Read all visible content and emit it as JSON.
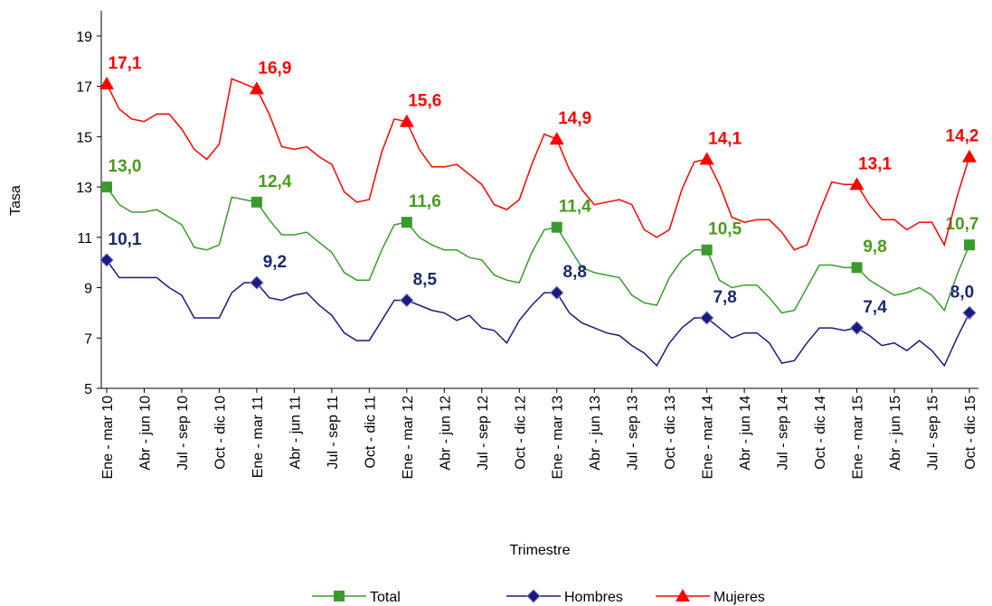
{
  "chart_data": {
    "type": "line",
    "x_label": "Trimestre",
    "y_label": "Tasa",
    "categories": [
      "Ene - mar 10",
      null,
      null,
      "Abr - jun 10",
      null,
      null,
      "Jul - sep 10",
      null,
      null,
      "Oct - dic 10",
      null,
      null,
      "Ene - mar 11",
      null,
      null,
      "Abr - jun 11",
      null,
      null,
      "Jul - sep 11",
      null,
      null,
      "Oct - dic 11",
      null,
      null,
      "Ene - mar 12",
      null,
      null,
      "Abr - jun 12",
      null,
      null,
      "Jul - sep 12",
      null,
      null,
      "Oct - dic 12",
      null,
      null,
      "Ene - mar 13",
      null,
      null,
      "Abr - jun 13",
      null,
      null,
      "Jul - sep 13",
      null,
      null,
      "Oct - dic 13",
      null,
      null,
      "Ene - mar 14",
      null,
      null,
      "Abr - jun 14",
      null,
      null,
      "Jul - sep 14",
      null,
      null,
      "Oct - dic 14",
      null,
      null,
      "Ene - mar 15",
      null,
      null,
      "Abr - jun 15",
      null,
      null,
      "Jul - sep 15",
      null,
      null,
      "Oct - dic 15"
    ],
    "series": [
      {
        "name": "Total",
        "color": "#3b9a2e",
        "label_color": "#4a9a1c",
        "marker": "square",
        "values": [
          13.0,
          12.3,
          12.0,
          12.0,
          12.1,
          11.8,
          11.5,
          10.6,
          10.5,
          10.7,
          12.6,
          12.5,
          12.4,
          11.7,
          11.1,
          11.1,
          11.2,
          10.8,
          10.4,
          9.6,
          9.3,
          9.3,
          10.5,
          11.5,
          11.6,
          11.0,
          10.7,
          10.5,
          10.5,
          10.2,
          10.1,
          9.5,
          9.3,
          9.2,
          10.4,
          11.3,
          11.4,
          10.6,
          9.8,
          9.6,
          9.5,
          9.4,
          8.7,
          8.4,
          8.3,
          9.4,
          10.1,
          10.5,
          10.5,
          9.3,
          9.0,
          9.1,
          9.1,
          8.6,
          8.0,
          8.1,
          9.0,
          9.9,
          9.9,
          9.8,
          9.8,
          9.3,
          9.0,
          8.7,
          8.8,
          9.0,
          8.7,
          8.1,
          9.5,
          10.7
        ],
        "value_labels": [
          "13,0",
          null,
          null,
          null,
          null,
          null,
          null,
          null,
          null,
          null,
          null,
          null,
          "12,4",
          null,
          null,
          null,
          null,
          null,
          null,
          null,
          null,
          null,
          null,
          null,
          "11,6",
          null,
          null,
          null,
          null,
          null,
          null,
          null,
          null,
          null,
          null,
          null,
          "11,4",
          null,
          null,
          null,
          null,
          null,
          null,
          null,
          null,
          null,
          null,
          null,
          "10,5",
          null,
          null,
          null,
          null,
          null,
          null,
          null,
          null,
          null,
          null,
          null,
          "9,8",
          null,
          null,
          null,
          null,
          null,
          null,
          null,
          null,
          "10,7"
        ]
      },
      {
        "name": "Hombres",
        "color": "#1a1a80",
        "label_color": "#1a2a6c",
        "marker": "diamond",
        "values": [
          10.1,
          9.4,
          9.4,
          9.4,
          9.4,
          9.0,
          8.7,
          7.8,
          7.8,
          7.8,
          8.8,
          9.2,
          9.2,
          8.6,
          8.5,
          8.7,
          8.8,
          8.3,
          7.9,
          7.2,
          6.9,
          6.9,
          7.7,
          8.5,
          8.5,
          8.3,
          8.1,
          8.0,
          7.7,
          7.9,
          7.4,
          7.3,
          6.8,
          7.7,
          8.3,
          8.8,
          8.8,
          8.0,
          7.6,
          7.4,
          7.2,
          7.1,
          6.7,
          6.4,
          5.9,
          6.8,
          7.4,
          7.8,
          7.8,
          7.4,
          7.0,
          7.2,
          7.2,
          6.8,
          6.0,
          6.1,
          6.8,
          7.4,
          7.4,
          7.3,
          7.4,
          7.1,
          6.7,
          6.8,
          6.5,
          6.9,
          6.5,
          5.9,
          7.0,
          8.0
        ],
        "value_labels": [
          "10,1",
          null,
          null,
          null,
          null,
          null,
          null,
          null,
          null,
          null,
          null,
          null,
          "9,2",
          null,
          null,
          null,
          null,
          null,
          null,
          null,
          null,
          null,
          null,
          null,
          "8,5",
          null,
          null,
          null,
          null,
          null,
          null,
          null,
          null,
          null,
          null,
          null,
          "8,8",
          null,
          null,
          null,
          null,
          null,
          null,
          null,
          null,
          null,
          null,
          null,
          "7,8",
          null,
          null,
          null,
          null,
          null,
          null,
          null,
          null,
          null,
          null,
          null,
          "7,4",
          null,
          null,
          null,
          null,
          null,
          null,
          null,
          null,
          "8,0"
        ]
      },
      {
        "name": "Mujeres",
        "color": "#ff0000",
        "label_color": "#ff0000",
        "marker": "triangle",
        "values": [
          17.1,
          16.1,
          15.7,
          15.6,
          15.9,
          15.9,
          15.3,
          14.5,
          14.1,
          14.7,
          17.3,
          17.1,
          16.9,
          15.9,
          14.6,
          14.5,
          14.6,
          14.2,
          13.9,
          12.8,
          12.4,
          12.5,
          14.4,
          15.7,
          15.6,
          14.5,
          13.8,
          13.8,
          13.9,
          13.5,
          13.1,
          12.3,
          12.1,
          12.5,
          13.9,
          15.1,
          14.9,
          13.7,
          12.9,
          12.3,
          12.4,
          12.5,
          12.3,
          11.3,
          11.0,
          11.3,
          12.9,
          14.0,
          14.1,
          13.1,
          11.8,
          11.6,
          11.7,
          11.7,
          11.2,
          10.5,
          10.7,
          12.0,
          13.2,
          13.1,
          13.1,
          12.3,
          11.7,
          11.7,
          11.3,
          11.6,
          11.6,
          10.7,
          12.6,
          14.2
        ],
        "value_labels": [
          "17,1",
          null,
          null,
          null,
          null,
          null,
          null,
          null,
          null,
          null,
          null,
          null,
          "16,9",
          null,
          null,
          null,
          null,
          null,
          null,
          null,
          null,
          null,
          null,
          null,
          "15,6",
          null,
          null,
          null,
          null,
          null,
          null,
          null,
          null,
          null,
          null,
          null,
          "14,9",
          null,
          null,
          null,
          null,
          null,
          null,
          null,
          null,
          null,
          null,
          null,
          "14,1",
          null,
          null,
          null,
          null,
          null,
          null,
          null,
          null,
          null,
          null,
          null,
          "13,1",
          null,
          null,
          null,
          null,
          null,
          null,
          null,
          null,
          "14,2"
        ]
      }
    ],
    "ylim": [
      5,
      20
    ],
    "yticks": [
      5,
      7,
      9,
      11,
      13,
      15,
      17,
      19
    ],
    "grid": false,
    "legend": "bottom"
  }
}
